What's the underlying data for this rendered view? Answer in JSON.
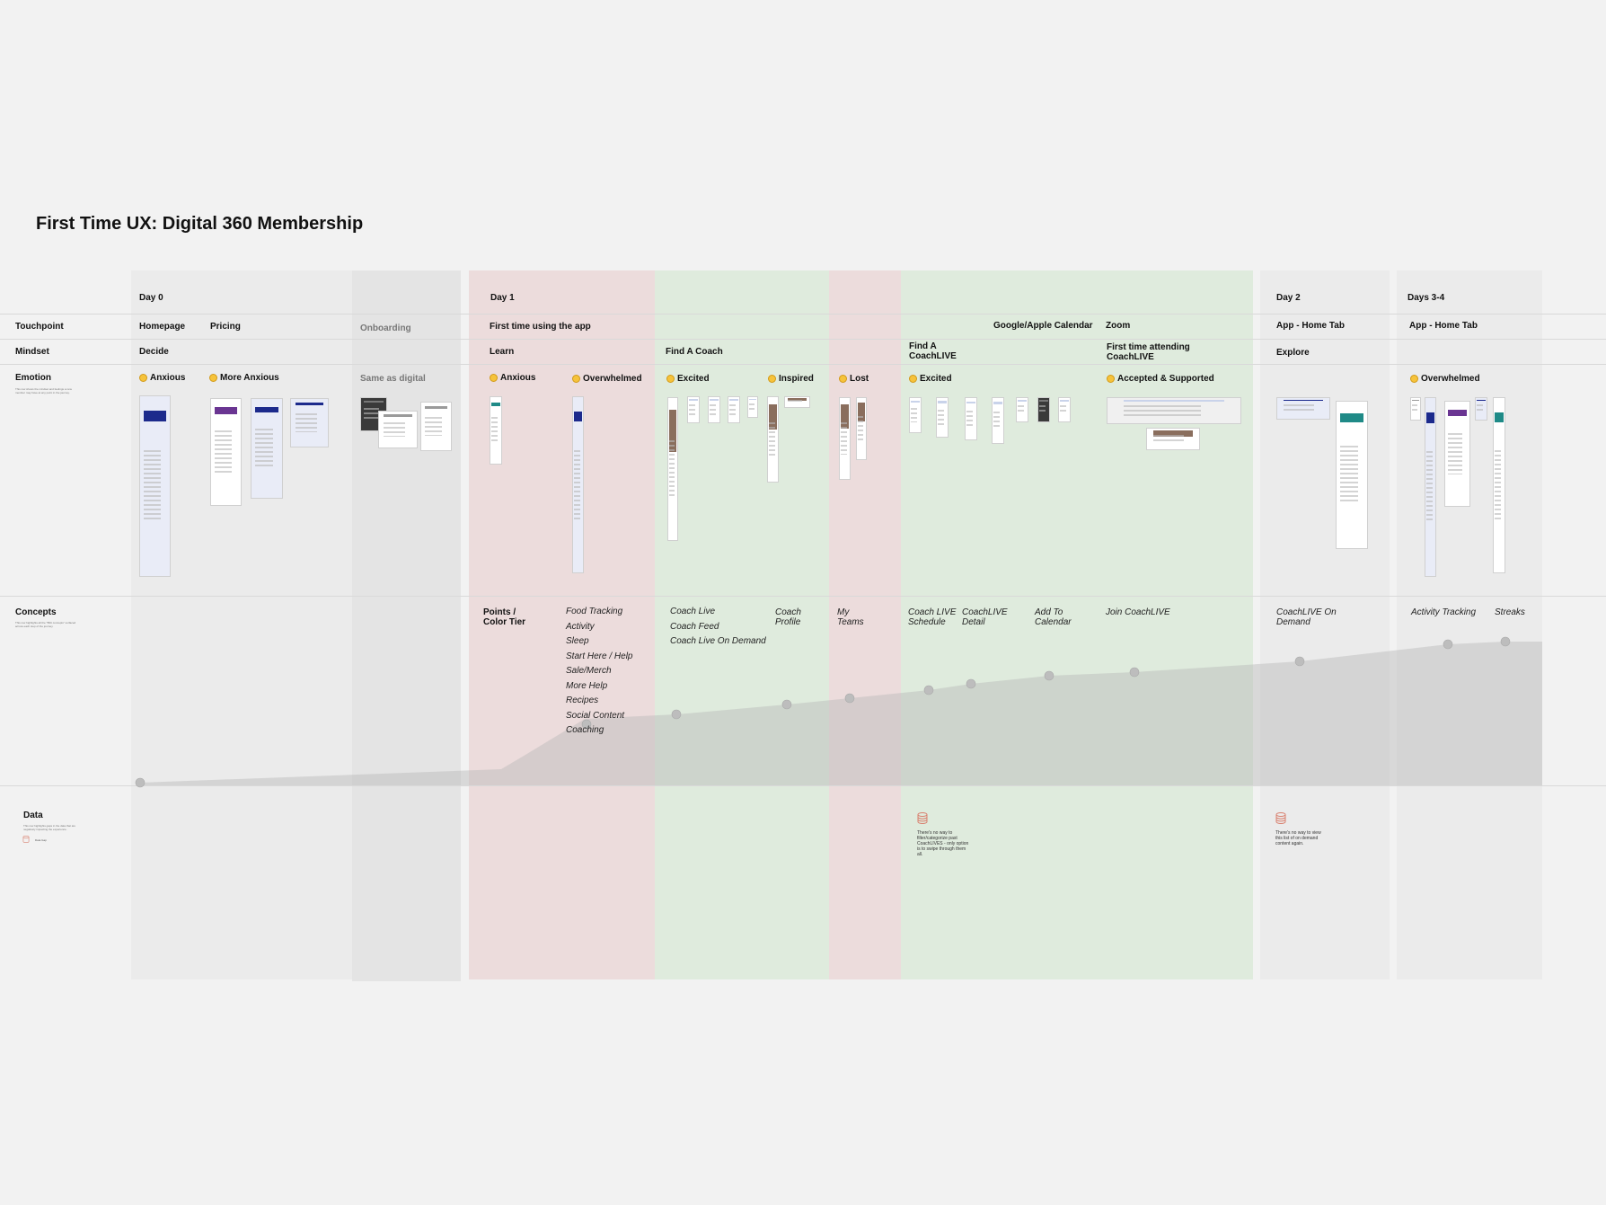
{
  "title": "First Time UX: Digital 360 Membership",
  "row_labels": {
    "touchpoint": "Touchpoint",
    "mindset": "Mindset",
    "emotion": "Emotion",
    "emotion_desc": "This row shows the mindset and feelings a new member may have at any point in the journey.",
    "concepts": "Concepts",
    "concepts_desc": "This row highlights all the \"BFit concepts\" surfaced across each step of the journey.",
    "data": "Data",
    "data_desc": "This row highlights gaps in the data that are negatively impacting the experience.",
    "data_legend": "Data Gap"
  },
  "phases": {
    "day0": "Day 0",
    "day1": "Day 1",
    "day2": "Day 2",
    "days34": "Days 3-4"
  },
  "touchpoints": {
    "homepage": "Homepage",
    "pricing": "Pricing",
    "onboarding": "Onboarding",
    "first_time_app": "First time using the app",
    "google_calendar": "Google/Apple Calendar",
    "zoom": "Zoom",
    "app_home_day2": "App - Home Tab",
    "app_home_days34": "App - Home Tab"
  },
  "mindsets": {
    "decide": "Decide",
    "learn": "Learn",
    "find_coach": "Find A Coach",
    "find_coachlive": "Find A CoachLIVE",
    "first_time_coachlive": "First time attending CoachLIVE",
    "explore": "Explore"
  },
  "emotions": {
    "anxious0": "Anxious",
    "more_anxious": "More Anxious",
    "same_as_digital": "Same as digital",
    "anxious1": "Anxious",
    "overwhelmed1": "Overwhelmed",
    "excited1": "Excited",
    "inspired": "Inspired",
    "lost": "Lost",
    "excited2": "Excited",
    "accepted": "Accepted & Supported",
    "overwhelmed2": "Overwhelmed"
  },
  "concepts": {
    "points": "Points / Color Tier",
    "learn_list": [
      "Food Tracking",
      "Activity",
      "Sleep",
      "Start Here / Help",
      "Sale/Merch",
      "More Help",
      "Recipes",
      "Social Content",
      "Coaching"
    ],
    "coach_list": [
      "Coach Live",
      "Coach Feed",
      "Coach Live On Demand"
    ],
    "coach_profile": "Coach Profile",
    "my_teams": "My Teams",
    "coach_live_schedule": "Coach LIVE Schedule",
    "coachlive_detail": "CoachLIVE Detail",
    "add_to_calendar": "Add To Calendar",
    "join_coachlive": "Join CoachLIVE",
    "coachlive_on_demand": "CoachLIVE On Demand",
    "activity_tracking": "Activity Tracking",
    "streaks": "Streaks"
  },
  "data_notes": {
    "coachlive_gap": "There's no way to filter/categorize past CoachLIVES - only option is to swipe through them all.",
    "ondemand_gap": "There's no way to view this list of on demand content again."
  },
  "colors": {
    "canvas": "#f2f2f2",
    "band_gray": "#ebebeb",
    "band_onboarding": "#e4e4e4",
    "band_negative": "#ecdcdc",
    "band_positive": "#dfebdd",
    "curve_fill": "#b4b4b4",
    "data_gap_icon": "#d9806f"
  },
  "bands": [
    {
      "id": "day0",
      "tone": "neutral"
    },
    {
      "id": "onboarding",
      "tone": "neutral"
    },
    {
      "id": "day1-learn",
      "tone": "negative"
    },
    {
      "id": "find-coach",
      "tone": "positive"
    },
    {
      "id": "lost",
      "tone": "negative"
    },
    {
      "id": "coachlive",
      "tone": "positive"
    },
    {
      "id": "day2",
      "tone": "neutral"
    },
    {
      "id": "days34",
      "tone": "neutral"
    }
  ]
}
